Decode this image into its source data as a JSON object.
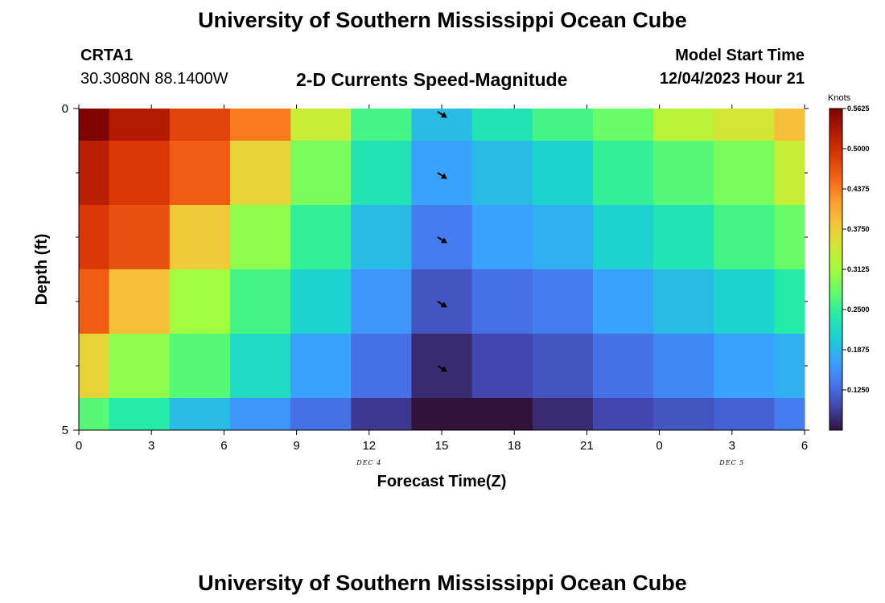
{
  "page": {
    "title_top": "University of Southern Mississippi Ocean Cube",
    "title_bottom": "University of Southern Mississippi Ocean Cube",
    "station_id": "CRTA1",
    "coords": "30.3080N  88.1400W",
    "plot_title": "2-D Currents Speed-Magnitude",
    "model_label": "Model Start Time",
    "model_time": "12/04/2023 Hour 21"
  },
  "chart_data": {
    "type": "heatmap",
    "title": "2-D Currents Speed-Magnitude",
    "xlabel": "Forecast Time(Z)",
    "ylabel": "Depth (ft)",
    "x_ticks": [
      "0",
      "3",
      "6",
      "9",
      "12",
      "15",
      "18",
      "21",
      "0",
      "3",
      "6"
    ],
    "x_tick_hours": [
      0,
      3,
      6,
      9,
      12,
      15,
      18,
      21,
      24,
      27,
      30
    ],
    "x_range": [
      0,
      30
    ],
    "day_labels": [
      {
        "text": "DEC 4",
        "hour": 12
      },
      {
        "text": "DEC 5",
        "hour": 27
      }
    ],
    "y_ticks": [
      "0",
      "5"
    ],
    "y_tick_values": [
      0,
      5
    ],
    "y_minor_ticks": [
      1,
      2,
      3,
      4
    ],
    "y_range": [
      0,
      5
    ],
    "x_edges": [
      0,
      1.25,
      3.75,
      6.25,
      8.75,
      11.25,
      13.75,
      16.25,
      18.75,
      21.25,
      23.75,
      26.25,
      28.75,
      30
    ],
    "y_edges": [
      0,
      0.5,
      1.5,
      2.5,
      3.5,
      4.5,
      5
    ],
    "values": [
      [
        0.56,
        0.525,
        0.48,
        0.44,
        0.34,
        0.26,
        0.19,
        0.23,
        0.26,
        0.28,
        0.33,
        0.35,
        0.39
      ],
      [
        0.52,
        0.49,
        0.46,
        0.37,
        0.29,
        0.23,
        0.17,
        0.19,
        0.21,
        0.25,
        0.27,
        0.29,
        0.34
      ],
      [
        0.49,
        0.47,
        0.38,
        0.3,
        0.25,
        0.19,
        0.14,
        0.17,
        0.18,
        0.21,
        0.23,
        0.26,
        0.28
      ],
      [
        0.46,
        0.39,
        0.31,
        0.26,
        0.21,
        0.16,
        0.11,
        0.13,
        0.14,
        0.17,
        0.19,
        0.21,
        0.24
      ],
      [
        0.37,
        0.3,
        0.27,
        0.22,
        0.17,
        0.13,
        0.08,
        0.1,
        0.11,
        0.13,
        0.15,
        0.17,
        0.18
      ],
      [
        0.27,
        0.24,
        0.19,
        0.16,
        0.13,
        0.09,
        0.03,
        0.06,
        0.08,
        0.1,
        0.11,
        0.12,
        0.14
      ]
    ],
    "vectors": [
      {
        "hour": 15,
        "depth": 0.05
      },
      {
        "hour": 15,
        "depth": 1.0
      },
      {
        "hour": 15,
        "depth": 2.0
      },
      {
        "hour": 15,
        "depth": 3.0
      },
      {
        "hour": 15,
        "depth": 4.0
      }
    ],
    "colorbar": {
      "units": "Knots",
      "min": 0.0625,
      "max": 0.5625,
      "tick_values": [
        0.5625,
        0.5,
        0.4375,
        0.375,
        0.3125,
        0.25,
        0.1875,
        0.125
      ],
      "tick_labels": [
        "0.5625",
        "0.5000",
        "0.4375",
        "0.3750",
        "0.3125",
        "0.2500",
        "0.1875",
        "0.1250"
      ]
    }
  },
  "colors": {
    "colormap": [
      "#30123b",
      "#4145ab",
      "#4675ed",
      "#39a2fc",
      "#1bcfd4",
      "#24eca6",
      "#61fc6c",
      "#a4fc3b",
      "#d1e834",
      "#f3c63a",
      "#fe9b2d",
      "#f36315",
      "#d93806",
      "#b11901",
      "#7a0402"
    ],
    "vector": "#000000"
  }
}
